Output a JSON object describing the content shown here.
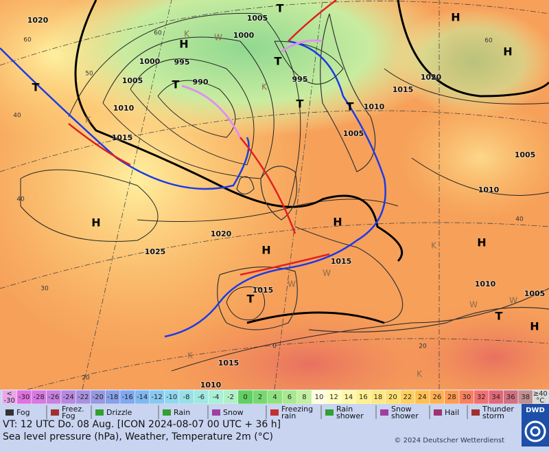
{
  "map": {
    "pressure_labels": [
      "1020",
      "1005",
      "1000",
      "1000",
      "995",
      "990",
      "1005",
      "1010",
      "1015",
      "995",
      "1015",
      "1020",
      "1010",
      "1005",
      "1005",
      "1010",
      "1020",
      "1025",
      "1015",
      "1015",
      "1010",
      "1005",
      "1015",
      "1010"
    ],
    "centers": [
      "H",
      "H",
      "H",
      "H",
      "H",
      "H",
      "H",
      "H",
      "T",
      "T",
      "T",
      "T",
      "T",
      "T",
      "T",
      "T"
    ],
    "air_mass": [
      "K",
      "K",
      "K",
      "K",
      "W",
      "W",
      "W",
      "W",
      "W",
      "K",
      "K"
    ],
    "lat_labels": [
      "60",
      "60",
      "50",
      "40",
      "40",
      "30",
      "20",
      "60",
      "40",
      "20",
      "0"
    ]
  },
  "scale": {
    "labels": [
      "<\n-30",
      "-30",
      "-28",
      "-26",
      "-24",
      "-22",
      "-20",
      "-18",
      "-16",
      "-14",
      "-12",
      "-10",
      "-8",
      "-6",
      "-4",
      "-2",
      "0",
      "2",
      "4",
      "6",
      "8",
      "10",
      "12",
      "14",
      "16",
      "18",
      "20",
      "22",
      "24",
      "26",
      "28",
      "30",
      "32",
      "34",
      "36",
      "38",
      "≥40\n°C"
    ],
    "colors": [
      "#e8a8e8",
      "#e070e0",
      "#d878e0",
      "#c880e0",
      "#b888e0",
      "#a890e0",
      "#9898e0",
      "#88a0e8",
      "#80a8f0",
      "#80b8f0",
      "#88c8f0",
      "#90d8f0",
      "#98e0e8",
      "#a0e8e0",
      "#a8f0d8",
      "#b0f0c8",
      "#60d060",
      "#78d870",
      "#90e080",
      "#a8e890",
      "#c0f0a0",
      "#ffffe0",
      "#ffffc0",
      "#fff8a8",
      "#fff090",
      "#ffe880",
      "#ffe070",
      "#ffd060",
      "#ffc050",
      "#ffb050",
      "#ff9a50",
      "#f88060",
      "#f07070",
      "#e06878",
      "#d07080",
      "#c09090",
      "#d8d8d8"
    ]
  },
  "weather_legend": [
    "Fog",
    "Freez.\nFog",
    "Drizzle",
    "Rain",
    "Snow",
    "Freezing\nrain",
    "Rain\nshower",
    "Snow\nshower",
    "Hail",
    "Thunder\nstorm"
  ],
  "logo": "DWD",
  "footer": {
    "valid": "VT: 12 UTC Do.  08 Aug. [ICON 2024-08-07  00 UTC + 36 h]",
    "description": "Sea level pressure (hPa), Weather, Temperature 2m (°C)",
    "copyright": "© 2024 Deutscher Wetterdienst"
  }
}
